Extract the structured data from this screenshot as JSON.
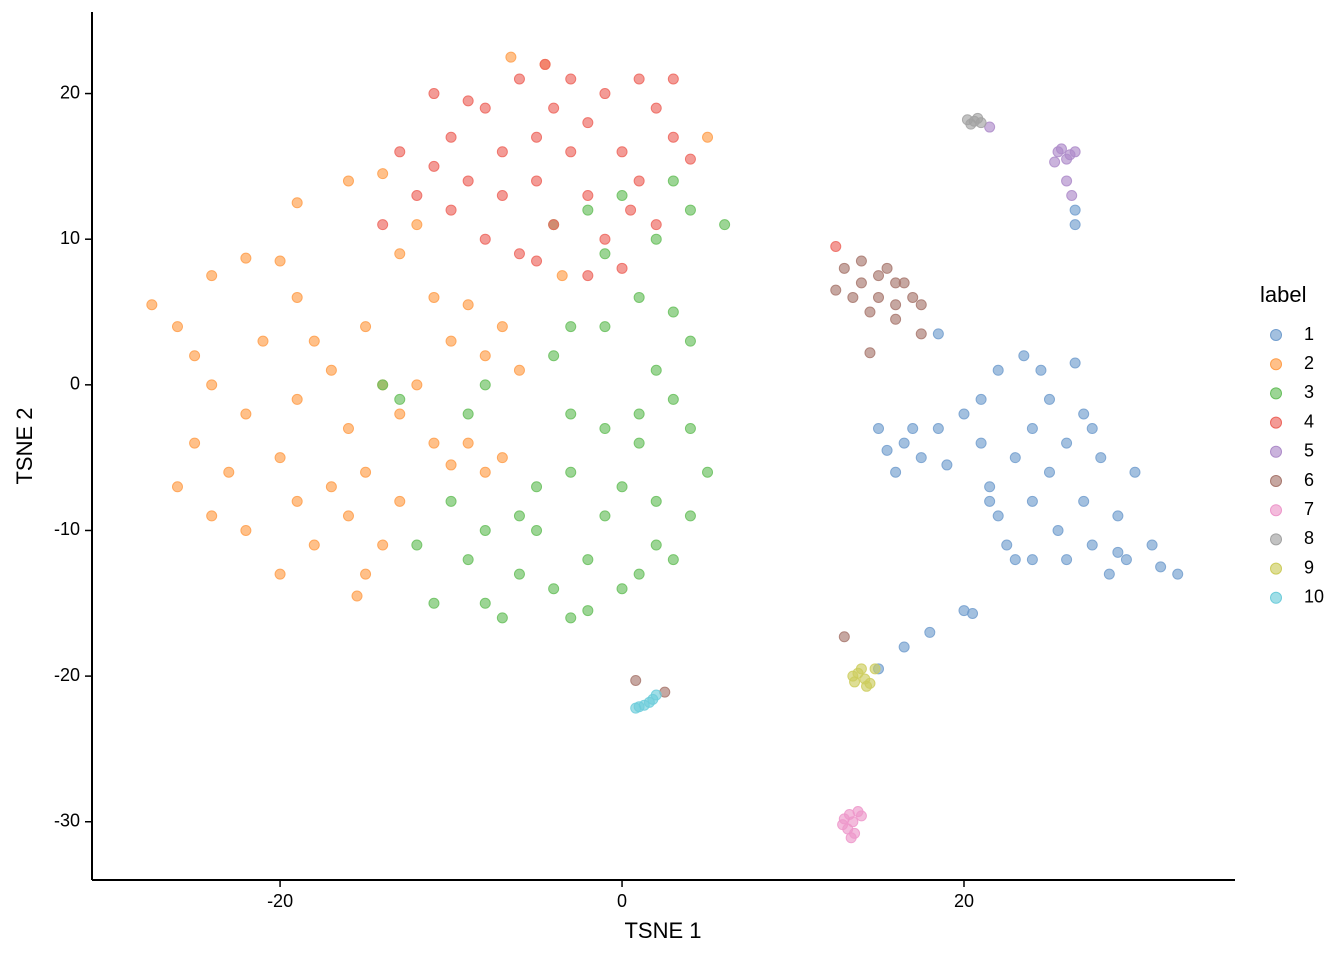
{
  "chart_data": {
    "type": "scatter",
    "x_label": "TSNE 1",
    "y_label": "TSNE 2",
    "legend_title": "label",
    "legend": "right",
    "xlim": [
      -31,
      35.85
    ],
    "ylim": [
      -34,
      25.6
    ],
    "xticks": [
      -20,
      0,
      20
    ],
    "yticks": [
      -30,
      -20,
      -10,
      0,
      10,
      20
    ],
    "series": [
      {
        "name": "1",
        "color": "#729ece",
        "x": [
          15,
          15.5,
          16,
          17,
          17.5,
          18.5,
          19,
          16.5,
          20,
          21,
          21.5,
          22,
          22.5,
          23,
          23,
          24,
          24,
          24.5,
          25,
          25,
          25.5,
          26,
          26,
          26.5,
          27,
          27,
          27.5,
          28,
          28.5,
          29,
          29.5,
          30,
          31,
          31.5,
          32.5,
          29,
          24,
          22,
          21,
          27.5,
          20,
          18,
          16.5,
          15,
          18.5,
          26.5,
          26.5,
          20.5,
          21.5,
          23.5
        ],
        "y": [
          -3,
          -4.5,
          -6,
          -3,
          -5,
          -3,
          -5.5,
          -4,
          -2,
          -4,
          -7,
          -9,
          -11,
          -12,
          -5,
          -3,
          -8,
          1,
          -1,
          -6,
          -10,
          -12,
          -4,
          1.5,
          -2,
          -8,
          -11,
          -5,
          -13,
          -9,
          -12,
          -6,
          -11,
          -12.5,
          -13,
          -11.5,
          -12,
          1,
          -1,
          -3,
          -15.5,
          -17,
          -18,
          -19.5,
          3.5,
          12,
          11,
          -15.7,
          -8,
          2
        ]
      },
      {
        "name": "2",
        "color": "#ff9e4a",
        "x": [
          -27.5,
          -26,
          -25,
          -24,
          -25,
          -26,
          -24,
          -22,
          -23,
          -22,
          -21,
          -20,
          -19,
          -18,
          -19,
          -20,
          -19,
          -20,
          -18,
          -17,
          -16,
          -15,
          -16,
          -17,
          -15,
          -14,
          -13,
          -15,
          -13,
          -14,
          -11,
          -10,
          -9,
          -8,
          -7,
          -11,
          -10,
          -9,
          -8,
          -7,
          -6,
          -13,
          -12,
          -16,
          -14,
          -19,
          -6.5,
          -4.5,
          5,
          -15.5,
          -12,
          -3.5,
          -22,
          -24
        ],
        "y": [
          5.5,
          4,
          2,
          0,
          -4,
          -7,
          -9,
          -10,
          -6,
          -2,
          3,
          8.5,
          6,
          3,
          -1,
          -5,
          -8,
          -13,
          -11,
          -7,
          -9,
          -13,
          -3,
          1,
          4,
          0,
          -2,
          -6,
          -8,
          -11,
          -4,
          -5.5,
          -4,
          -6,
          -5,
          6,
          3,
          5.5,
          2,
          4,
          1,
          9,
          11,
          14,
          14.5,
          12.5,
          22.5,
          22,
          17,
          -14.5,
          0,
          7.5,
          8.7,
          7.5
        ]
      },
      {
        "name": "3",
        "color": "#67bf5c",
        "x": [
          -12,
          -11,
          -10,
          -9,
          -8,
          -7,
          -6,
          -5,
          -4,
          -3,
          -2,
          -1,
          0,
          1,
          2,
          3,
          4,
          5,
          4,
          3,
          2,
          4,
          3,
          1,
          -1,
          -3,
          -4,
          -3,
          -1,
          1,
          -5,
          -3,
          0,
          2,
          -9,
          -8,
          -14,
          -13,
          2,
          4,
          6,
          3,
          0,
          -1,
          -4,
          -2,
          -6,
          -8,
          1,
          -2
        ],
        "y": [
          -11,
          -15,
          -8,
          -12,
          -15,
          -16,
          -13,
          -10,
          -14,
          -16,
          -12,
          -9,
          -14,
          -13,
          -11,
          -12,
          -9,
          -6,
          -3,
          -1,
          1,
          3,
          5,
          6,
          4,
          4,
          2,
          -2,
          -3,
          -4,
          -7,
          -6,
          -7,
          -8,
          -2,
          0,
          0,
          -1,
          10,
          12,
          11,
          14,
          13,
          9,
          11,
          12,
          -9,
          -10,
          -2,
          -15.5
        ]
      },
      {
        "name": "4",
        "color": "#ed665d",
        "x": [
          -13,
          -12,
          -11,
          -10,
          -10,
          -9,
          -8,
          -8,
          -7,
          -7,
          -6,
          -6,
          -5,
          -5,
          -4,
          -4,
          -3,
          -3,
          -2,
          -2,
          -1,
          -1,
          0,
          0,
          1,
          1,
          2,
          2,
          3,
          3,
          -14,
          -9,
          -11,
          0.5,
          -4.5,
          4,
          -5,
          12.5,
          -2
        ],
        "y": [
          16,
          13,
          15,
          17,
          12,
          14,
          19,
          10,
          16,
          13,
          21,
          9,
          17,
          14,
          19,
          11,
          21,
          16,
          18,
          13,
          20,
          10,
          16,
          8,
          21,
          14,
          19,
          11,
          21,
          17,
          11,
          19.5,
          20,
          12,
          22,
          15.5,
          8.5,
          9.5,
          7.5
        ]
      },
      {
        "name": "5",
        "color": "#ad8bc9",
        "x": [
          25.5,
          26,
          25.7,
          26.2,
          25.3,
          26,
          26.3,
          21.5,
          26.5
        ],
        "y": [
          16,
          15.5,
          16.2,
          15.8,
          15.3,
          14,
          13,
          17.7,
          16
        ]
      },
      {
        "name": "6",
        "color": "#a8786e",
        "x": [
          13,
          14,
          15,
          16,
          17,
          13.5,
          15.5,
          14.5,
          12.5,
          16.5,
          17.5,
          15,
          14,
          16,
          14.5,
          17.5,
          13,
          0.8,
          2.5,
          16
        ],
        "y": [
          8,
          7,
          6,
          5.5,
          6,
          6,
          8,
          5,
          6.5,
          7,
          5.5,
          7.5,
          8.5,
          4.5,
          2.2,
          3.5,
          -17.3,
          -20.3,
          -21.1,
          7
        ]
      },
      {
        "name": "7",
        "color": "#ed97ca",
        "x": [
          13,
          13.5,
          13.3,
          13.8,
          13.2,
          13.6,
          13.4,
          12.9,
          14
        ],
        "y": [
          -29.8,
          -30,
          -29.5,
          -29.3,
          -30.5,
          -30.8,
          -31.1,
          -30.2,
          -29.6
        ]
      },
      {
        "name": "8",
        "color": "#a2a2a2",
        "x": [
          20.2,
          20.6,
          20.4,
          21,
          20.8
        ],
        "y": [
          18.2,
          18.1,
          17.9,
          18,
          18.3
        ]
      },
      {
        "name": "9",
        "color": "#cdcc5d",
        "x": [
          13.5,
          14,
          14.2,
          13.8,
          14.5,
          14.8,
          13.6,
          14.3
        ],
        "y": [
          -20,
          -19.5,
          -20.2,
          -19.8,
          -20.5,
          -19.5,
          -20.4,
          -20.7
        ]
      },
      {
        "name": "10",
        "color": "#6dccda",
        "x": [
          1,
          1.3,
          1.6,
          0.8,
          2,
          1.8
        ],
        "y": [
          -22.1,
          -22,
          -21.8,
          -22.2,
          -21.3,
          -21.6
        ]
      }
    ]
  }
}
